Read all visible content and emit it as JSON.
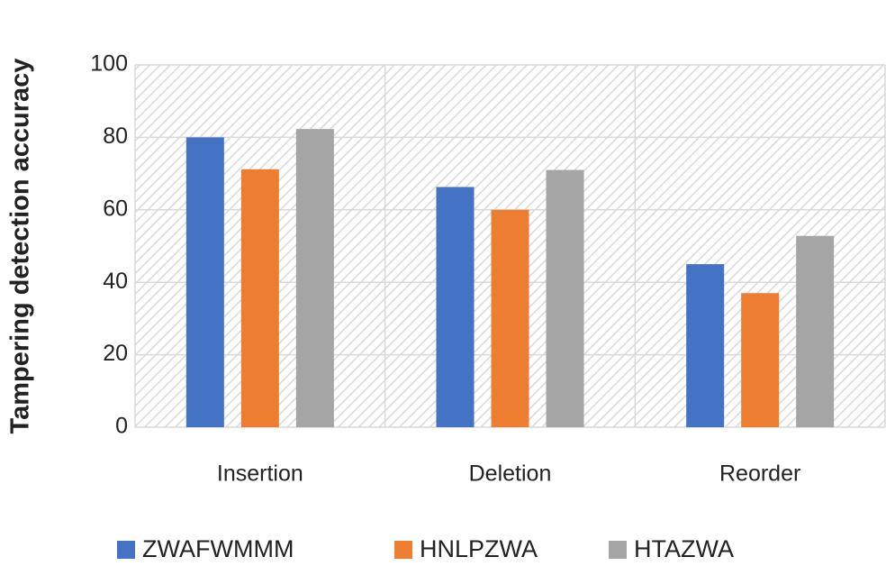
{
  "chart_data": {
    "type": "bar",
    "y_label": "Tampering detection accuracy",
    "categories": [
      "Insertion",
      "Deletion",
      "Reorder"
    ],
    "series": [
      {
        "name": "ZWAFWMMM",
        "color": "#4472c4",
        "values": [
          80,
          66.3,
          45
        ]
      },
      {
        "name": "HNLPZWA",
        "color": "#ed7d31",
        "values": [
          71.2,
          60,
          37
        ]
      },
      {
        "name": "HTAZWA",
        "color": "#a5a5a5",
        "values": [
          82.3,
          71,
          52.8
        ]
      }
    ],
    "ylim": [
      0,
      100
    ],
    "yticks": [
      0,
      20,
      40,
      60,
      80,
      100
    ],
    "grid": true,
    "legend": "bottom"
  }
}
